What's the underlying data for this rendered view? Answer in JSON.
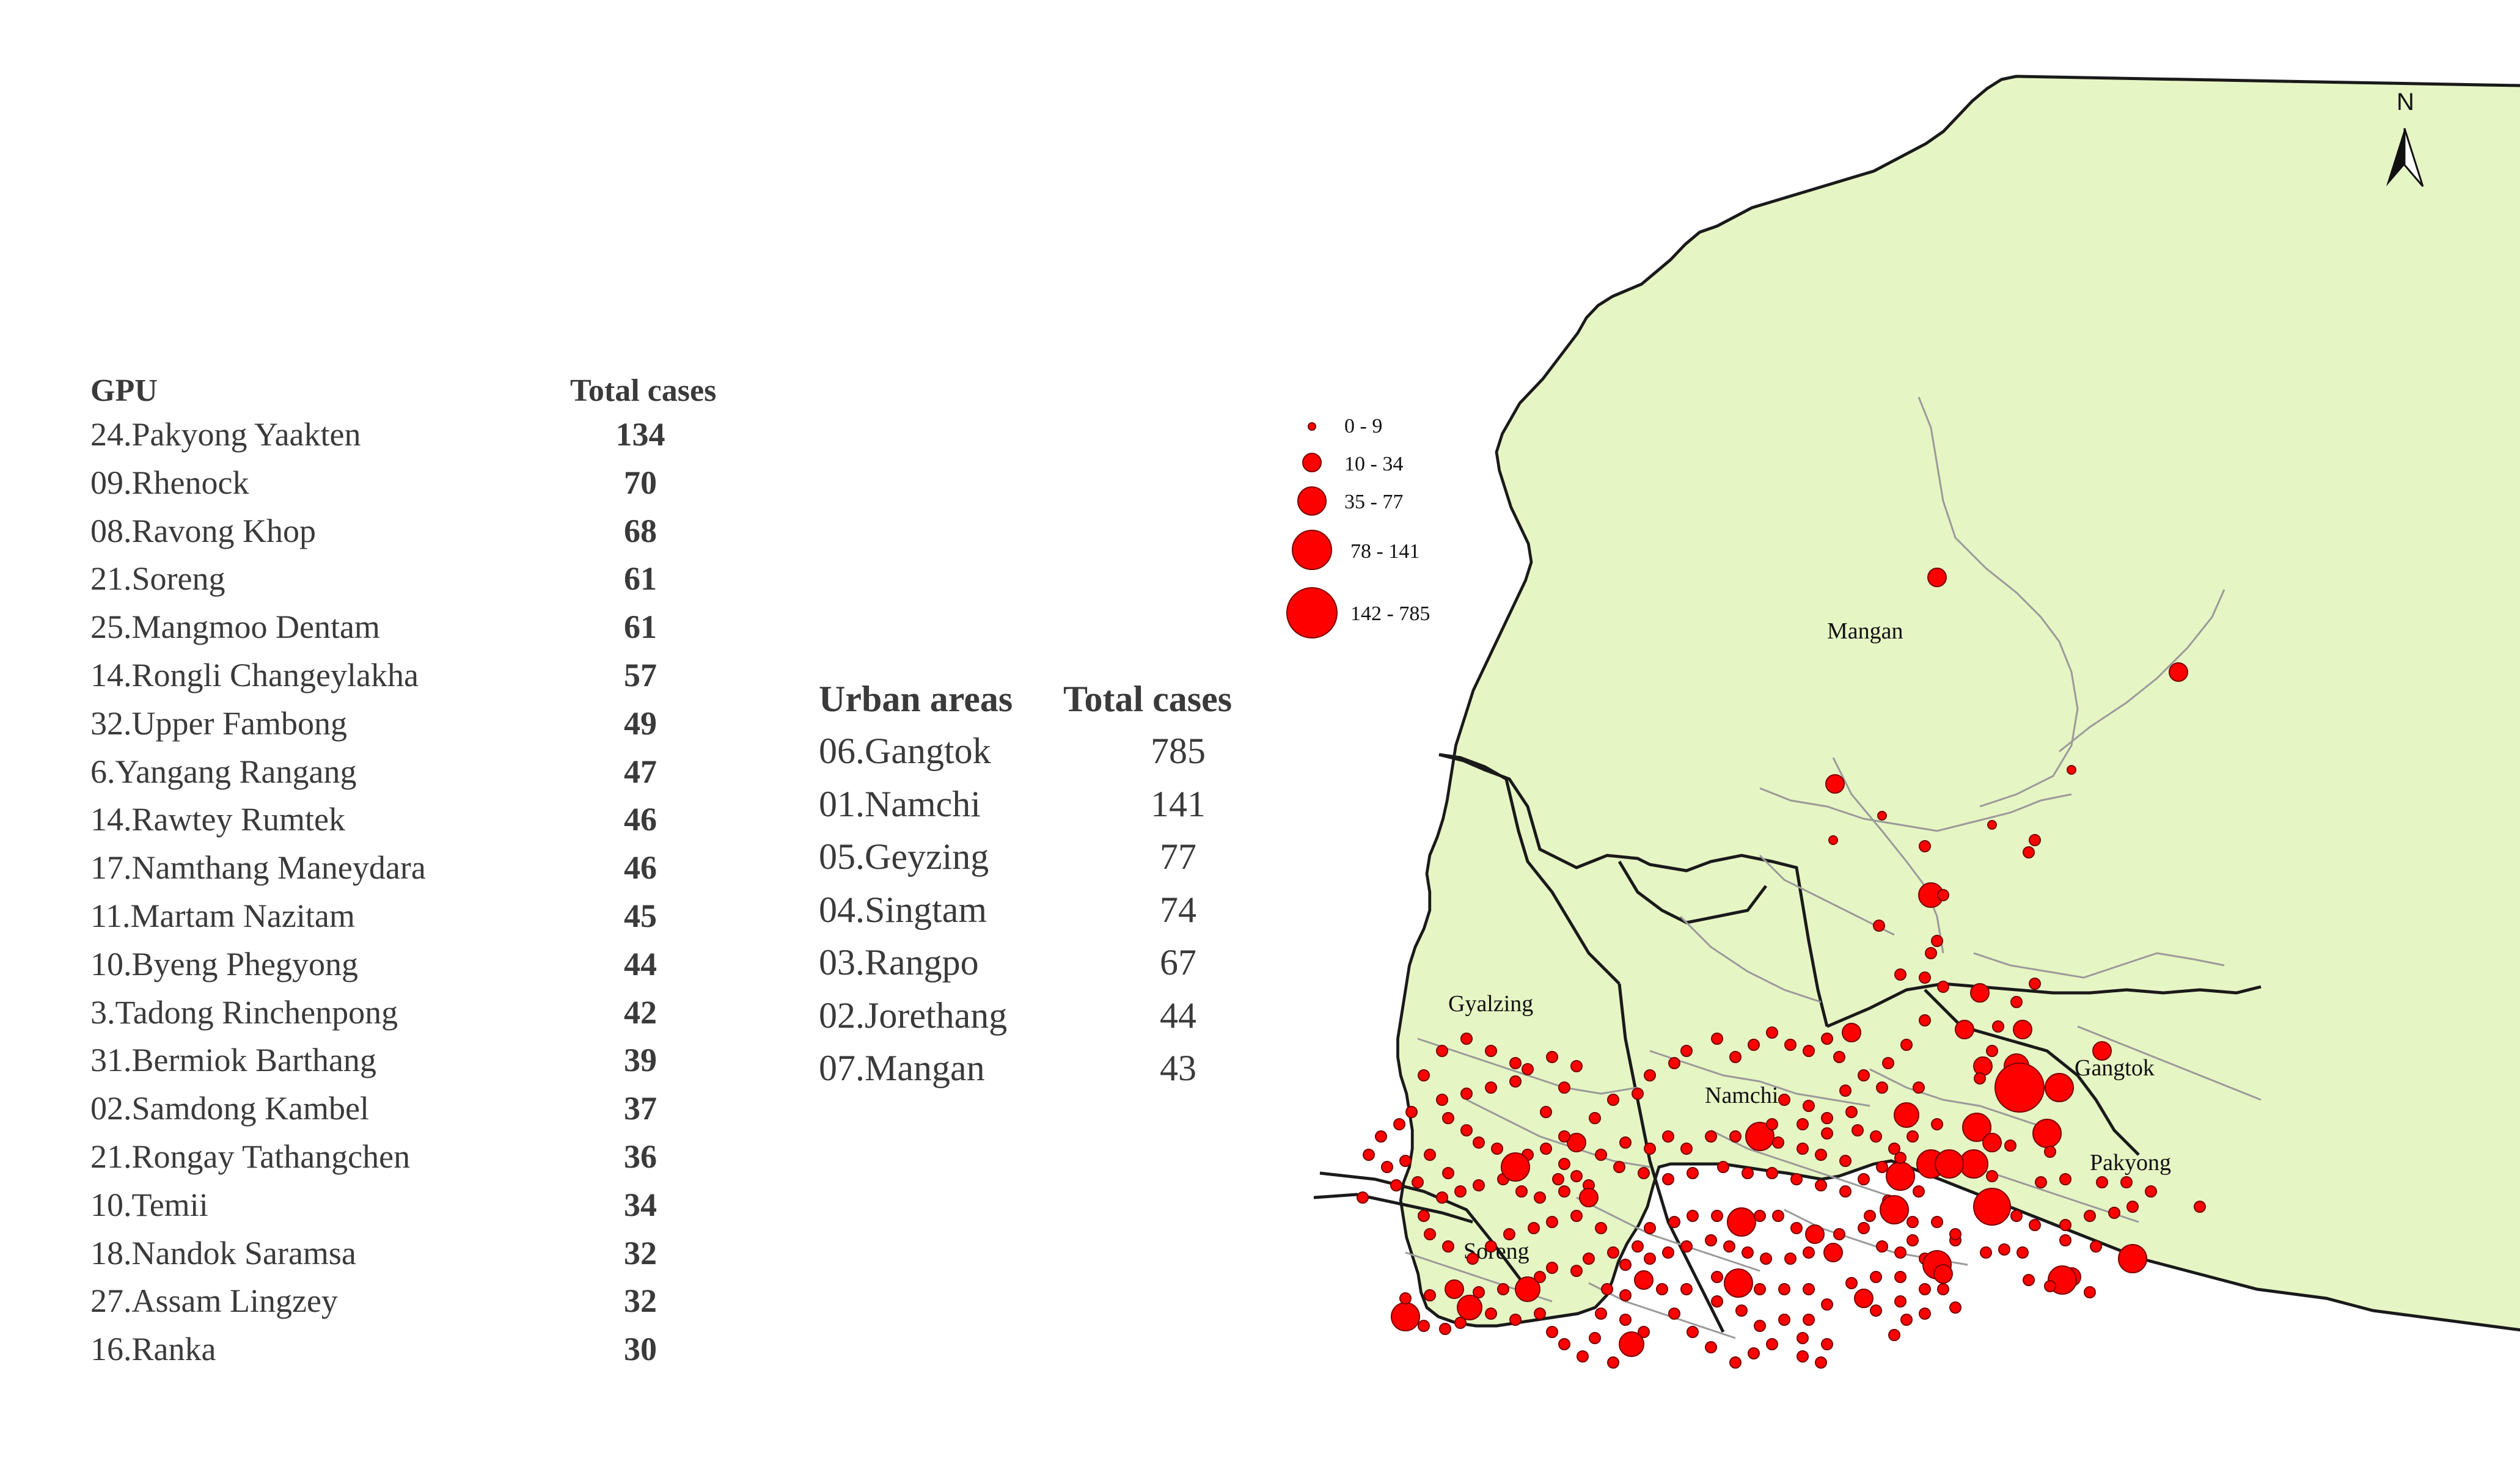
{
  "gpu_table": {
    "header_name": "GPU",
    "header_value": "Total cases",
    "rows": [
      {
        "name": "24.Pakyong Yaakten",
        "value": "134"
      },
      {
        "name": "09.Rhenock",
        "value": "70"
      },
      {
        "name": "08.Ravong Khop",
        "value": "68"
      },
      {
        "name": "21.Soreng",
        "value": "61"
      },
      {
        "name": "25.Mangmoo Dentam",
        "value": "61"
      },
      {
        "name": "14.Rongli Changeylakha",
        "value": "57"
      },
      {
        "name": "32.Upper Fambong",
        "value": "49"
      },
      {
        "name": "6.Yangang Rangang",
        "value": "47"
      },
      {
        "name": "14.Rawtey Rumtek",
        "value": "46"
      },
      {
        "name": "17.Namthang Maneydara",
        "value": "46"
      },
      {
        "name": "11.Martam Nazitam",
        "value": "45"
      },
      {
        "name": "10.Byeng Phegyong",
        "value": "44"
      },
      {
        "name": "3.Tadong Rinchenpong",
        "value": "42"
      },
      {
        "name": "31.Bermiok Barthang",
        "value": "39"
      },
      {
        "name": "02.Samdong Kambel",
        "value": "37"
      },
      {
        "name": "21.Rongay Tathangchen",
        "value": "36"
      },
      {
        "name": "10.Temii",
        "value": "34"
      },
      {
        "name": "18.Nandok Saramsa",
        "value": "32"
      },
      {
        "name": "27.Assam Lingzey",
        "value": "32"
      },
      {
        "name": "16.Ranka",
        "value": "30"
      }
    ]
  },
  "urban_table": {
    "header_name": "Urban areas",
    "header_value": "Total cases",
    "rows": [
      {
        "name": "06.Gangtok",
        "value": "785"
      },
      {
        "name": "01.Namchi",
        "value": "141"
      },
      {
        "name": "05.Geyzing",
        "value": "77"
      },
      {
        "name": "04.Singtam",
        "value": "74"
      },
      {
        "name": "03.Rangpo",
        "value": "67"
      },
      {
        "name": "02.Jorethang",
        "value": "44"
      },
      {
        "name": "07.Mangan",
        "value": "43"
      }
    ]
  },
  "map": {
    "district_labels": [
      "Mangan",
      "Gyalzing",
      "Namchi",
      "Gangtok",
      "Pakyong",
      "Soreng"
    ],
    "north_label": "N",
    "legend": [
      "0 - 9",
      "10 - 34",
      "35 - 77",
      "78 - 141",
      "142 - 785"
    ],
    "colors": {
      "land": "#e6f5c4",
      "border": "#1a1a1a",
      "inner_border": "#9a9a9a",
      "dot": "#ff0000",
      "dot_stroke": "#7a0000"
    }
  }
}
